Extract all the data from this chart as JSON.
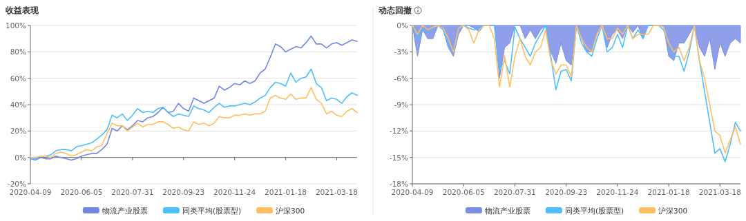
{
  "chart_data": [
    {
      "type": "line",
      "title": "收益表现",
      "categories": [
        "2020-04-09",
        null,
        null,
        null,
        null,
        null,
        null,
        null,
        null,
        null,
        "2020-06-05",
        null,
        null,
        null,
        null,
        null,
        null,
        null,
        null,
        null,
        "2020-07-31",
        null,
        null,
        null,
        null,
        null,
        null,
        null,
        null,
        null,
        "2020-09-23",
        null,
        null,
        null,
        null,
        null,
        null,
        null,
        null,
        null,
        "2020-11-24",
        null,
        null,
        null,
        null,
        null,
        null,
        null,
        null,
        null,
        "2021-01-18",
        null,
        null,
        null,
        null,
        null,
        null,
        null,
        null,
        null,
        "2021-03-18",
        null,
        null,
        null,
        null
      ],
      "ylim": [
        -20,
        100
      ],
      "yticks": [
        {
          "value": -20,
          "label": "-20%"
        },
        {
          "value": 0,
          "label": "0%"
        },
        {
          "value": 20,
          "label": "20%"
        },
        {
          "value": 40,
          "label": "40%"
        },
        {
          "value": 60,
          "label": "60%"
        },
        {
          "value": 80,
          "label": "80%"
        },
        {
          "value": 100,
          "label": "100%"
        }
      ],
      "grid": "y",
      "legend": "bottom",
      "series": [
        {
          "name": "物流产业股票",
          "color": "#7387e6",
          "values": [
            -1,
            -2,
            0,
            -1,
            -1,
            1,
            0,
            -1,
            -2,
            -1,
            1,
            2,
            3,
            3,
            6,
            10,
            22,
            20,
            24,
            21,
            24,
            28,
            27,
            30,
            31,
            34,
            38,
            34,
            35,
            41,
            37,
            35,
            45,
            43,
            41,
            43,
            45,
            54,
            51,
            53,
            56,
            55,
            58,
            56,
            58,
            64,
            67,
            76,
            86,
            84,
            80,
            82,
            84,
            83,
            87,
            92,
            86,
            86,
            83,
            86,
            87,
            85,
            87,
            89,
            88
          ]
        },
        {
          "name": "同类平均(股票型)",
          "color": "#4cbfff",
          "values": [
            -1,
            -1,
            1,
            1,
            2,
            5,
            6,
            6,
            5,
            8,
            9,
            10,
            11,
            14,
            17,
            21,
            32,
            30,
            33,
            28,
            32,
            37,
            34,
            35,
            34,
            37,
            38,
            34,
            31,
            33,
            32,
            31,
            39,
            37,
            36,
            34,
            38,
            41,
            38,
            39,
            39,
            40,
            41,
            40,
            42,
            45,
            47,
            53,
            57,
            56,
            54,
            64,
            57,
            60,
            61,
            67,
            56,
            53,
            43,
            45,
            44,
            41,
            46,
            49,
            47
          ]
        },
        {
          "name": "沪深300",
          "color": "#ffbf60",
          "values": [
            0,
            0,
            1,
            1,
            0,
            3,
            4,
            3,
            1,
            2,
            4,
            6,
            5,
            8,
            9,
            18,
            26,
            24,
            24,
            20,
            23,
            26,
            23,
            25,
            25,
            27,
            27,
            25,
            22,
            23,
            21,
            20,
            27,
            25,
            26,
            24,
            26,
            31,
            30,
            30,
            32,
            32,
            33,
            32,
            33,
            33,
            35,
            45,
            47,
            45,
            44,
            48,
            44,
            45,
            45,
            53,
            44,
            41,
            33,
            35,
            32,
            31,
            35,
            37,
            34
          ]
        }
      ]
    },
    {
      "type": "line",
      "title": "动态回撤",
      "categories": [
        "2020-04-09",
        null,
        null,
        null,
        null,
        null,
        null,
        null,
        null,
        null,
        "2020-06-05",
        null,
        null,
        null,
        null,
        null,
        null,
        null,
        null,
        null,
        "2020-07-31",
        null,
        null,
        null,
        null,
        null,
        null,
        null,
        null,
        null,
        "2020-09-23",
        null,
        null,
        null,
        null,
        null,
        null,
        null,
        null,
        null,
        "2020-11-24",
        null,
        null,
        null,
        null,
        null,
        null,
        null,
        null,
        null,
        "2021-01-18",
        null,
        null,
        null,
        null,
        null,
        null,
        null,
        null,
        null,
        "2021-03-18",
        null,
        null,
        null,
        null
      ],
      "ylim": [
        -18,
        0
      ],
      "yticks": [
        {
          "value": -18,
          "label": "-18%"
        },
        {
          "value": -15,
          "label": "-15%"
        },
        {
          "value": -12,
          "label": "-12%"
        },
        {
          "value": -9,
          "label": "-9%"
        },
        {
          "value": -6,
          "label": "-6%"
        },
        {
          "value": -3,
          "label": "-3%"
        },
        {
          "value": 0,
          "label": "0%"
        }
      ],
      "grid": "y",
      "legend": "bottom",
      "series": [
        {
          "name": "物流产业股票",
          "type": "area",
          "color": "#7b8ee6",
          "values": [
            0,
            -3.5,
            -0.5,
            -1.5,
            -1.5,
            0,
            -0.5,
            -2.5,
            -3.5,
            -1,
            0,
            0,
            -0.3,
            -0.7,
            0,
            0,
            0,
            -6,
            -2.5,
            -2,
            0,
            0,
            -1.5,
            -0.5,
            -1.5,
            -0.5,
            0,
            -3,
            -4.3,
            -2,
            -4,
            -4.5,
            0,
            -1.5,
            -3,
            -3,
            -1,
            0,
            -2.5,
            -1,
            -0.5,
            -1.5,
            0,
            -0.8,
            0,
            -1.5,
            0,
            0,
            0,
            0,
            -3.5,
            -4,
            -2,
            -2,
            -1,
            0,
            -2.5,
            -3.5,
            -1.5,
            -5,
            -2,
            -3.5,
            -2,
            -1.5,
            -2
          ]
        },
        {
          "name": "同类平均(股票型)",
          "color": "#4cbfff",
          "values": [
            0,
            -1.5,
            -0.3,
            -0.8,
            -0.3,
            0,
            -0.5,
            -2,
            -3,
            -0.5,
            0,
            -0.3,
            -0.5,
            -0.3,
            0,
            0,
            0,
            -5,
            -4,
            -5.5,
            -0.2,
            -1.5,
            -2.5,
            -3.5,
            -2,
            -1,
            0,
            -3.5,
            -7.3,
            -5.2,
            -5,
            -6.3,
            0,
            -2,
            -3,
            -3.5,
            -1.5,
            0,
            -3,
            -2.5,
            -1,
            -2.5,
            0,
            -1.5,
            -0.5,
            -1.5,
            0,
            0,
            0,
            -0.5,
            -2,
            -3.5,
            -3.5,
            -5.2,
            -3,
            0,
            -4,
            -7.5,
            -11,
            -14.5,
            -14,
            -15.5,
            -13.5,
            -11,
            -12
          ]
        },
        {
          "name": "沪深300",
          "color": "#ffbf60",
          "values": [
            0,
            -1,
            0,
            -0.5,
            -0.2,
            0,
            -0.3,
            -1.5,
            -3,
            -0.3,
            0,
            -0.5,
            -2,
            -0.5,
            0,
            0,
            -1.5,
            -7,
            -3.5,
            -7,
            -3.5,
            -1.5,
            -3.5,
            -4.5,
            -3,
            -2.5,
            -0.5,
            -4,
            -5.5,
            -4.5,
            -4.5,
            -5.8,
            0,
            -1.5,
            -2.5,
            -3,
            -1,
            0,
            -1.5,
            -1.5,
            -0.3,
            -1,
            0,
            -1.5,
            -1,
            -1,
            -1,
            0,
            0,
            -0.2,
            -2,
            -3,
            -2.5,
            -4,
            -2.5,
            0,
            -4,
            -6,
            -9,
            -12,
            -12.5,
            -14.5,
            -13,
            -11.5,
            -13.5
          ]
        }
      ]
    }
  ]
}
